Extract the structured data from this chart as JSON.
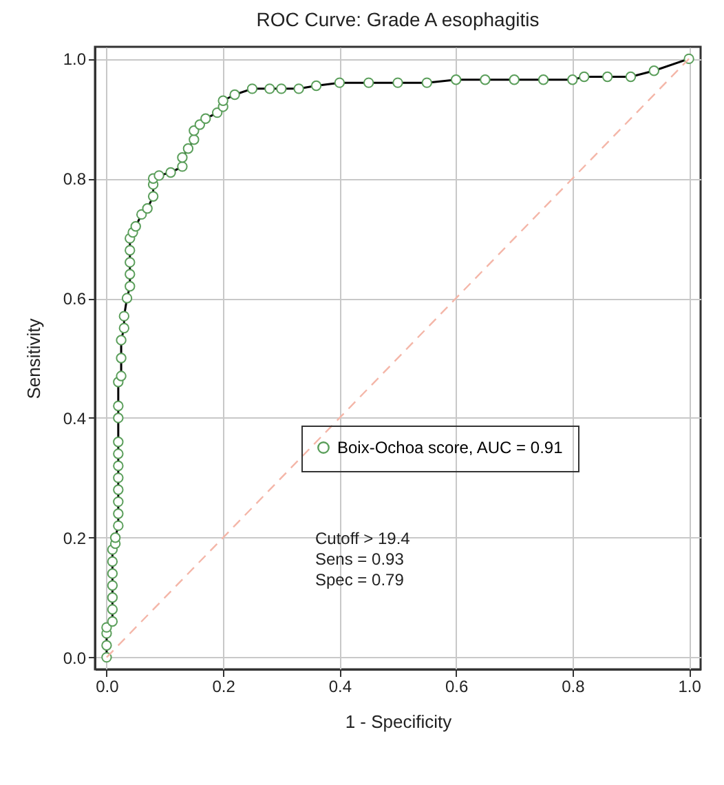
{
  "chart_data": {
    "type": "line",
    "title": "ROC Curve: Grade A esophagitis",
    "xlabel": "1 - Specificity",
    "ylabel": "Sensitivity",
    "series": [
      {
        "name": "Boix-Ochoa score, AUC = 0.91",
        "color": "#5a9e5a",
        "marker": "circle",
        "x": [
          0,
          0,
          0,
          0,
          0.01,
          0.01,
          0.01,
          0.01,
          0.01,
          0.01,
          0.01,
          0.015,
          0.015,
          0.02,
          0.02,
          0.02,
          0.02,
          0.02,
          0.02,
          0.02,
          0.02,
          0.02,
          0.02,
          0.02,
          0.025,
          0.025,
          0.025,
          0.03,
          0.03,
          0.035,
          0.04,
          0.04,
          0.04,
          0.04,
          0.04,
          0.045,
          0.05,
          0.06,
          0.07,
          0.08,
          0.08,
          0.08,
          0.09,
          0.11,
          0.13,
          0.13,
          0.14,
          0.15,
          0.15,
          0.16,
          0.17,
          0.19,
          0.2,
          0.2,
          0.22,
          0.25,
          0.28,
          0.3,
          0.33,
          0.36,
          0.4,
          0.45,
          0.5,
          0.55,
          0.6,
          0.65,
          0.7,
          0.75,
          0.8,
          0.82,
          0.86,
          0.9,
          0.94,
          1.0
        ],
        "values": [
          0,
          0.02,
          0.04,
          0.05,
          0.06,
          0.08,
          0.1,
          0.12,
          0.14,
          0.16,
          0.18,
          0.19,
          0.2,
          0.22,
          0.24,
          0.26,
          0.28,
          0.3,
          0.32,
          0.34,
          0.36,
          0.4,
          0.42,
          0.46,
          0.47,
          0.5,
          0.53,
          0.55,
          0.57,
          0.6,
          0.62,
          0.64,
          0.66,
          0.68,
          0.7,
          0.71,
          0.72,
          0.74,
          0.75,
          0.77,
          0.79,
          0.8,
          0.805,
          0.81,
          0.82,
          0.835,
          0.85,
          0.865,
          0.88,
          0.89,
          0.9,
          0.91,
          0.92,
          0.93,
          0.94,
          0.95,
          0.95,
          0.95,
          0.95,
          0.955,
          0.96,
          0.96,
          0.96,
          0.96,
          0.965,
          0.965,
          0.965,
          0.965,
          0.965,
          0.97,
          0.97,
          0.97,
          0.98,
          1.0
        ]
      },
      {
        "type": "line",
        "color": "#f4b6a8",
        "line_style": "dashed",
        "marker": "none",
        "x": [
          0,
          1
        ],
        "values": [
          0,
          1
        ]
      }
    ],
    "xlim": [
      -0.02,
      1.02
    ],
    "ylim": [
      -0.02,
      1.02
    ],
    "xticks": [
      {
        "value": 0,
        "label": "0.0"
      },
      0.2,
      0.4,
      0.6,
      0.8,
      {
        "value": 1,
        "label": "1.0"
      }
    ],
    "yticks": [
      {
        "value": 0,
        "label": "0.0"
      },
      0.2,
      0.4,
      0.6,
      0.8,
      {
        "value": 1,
        "label": "1.0"
      }
    ],
    "grid": true,
    "legend": "bottom right",
    "line_style": "solid",
    "annotations": [
      "Cutoff > 19.4",
      "Sens = 0.93",
      "Spec = 0.79"
    ]
  }
}
